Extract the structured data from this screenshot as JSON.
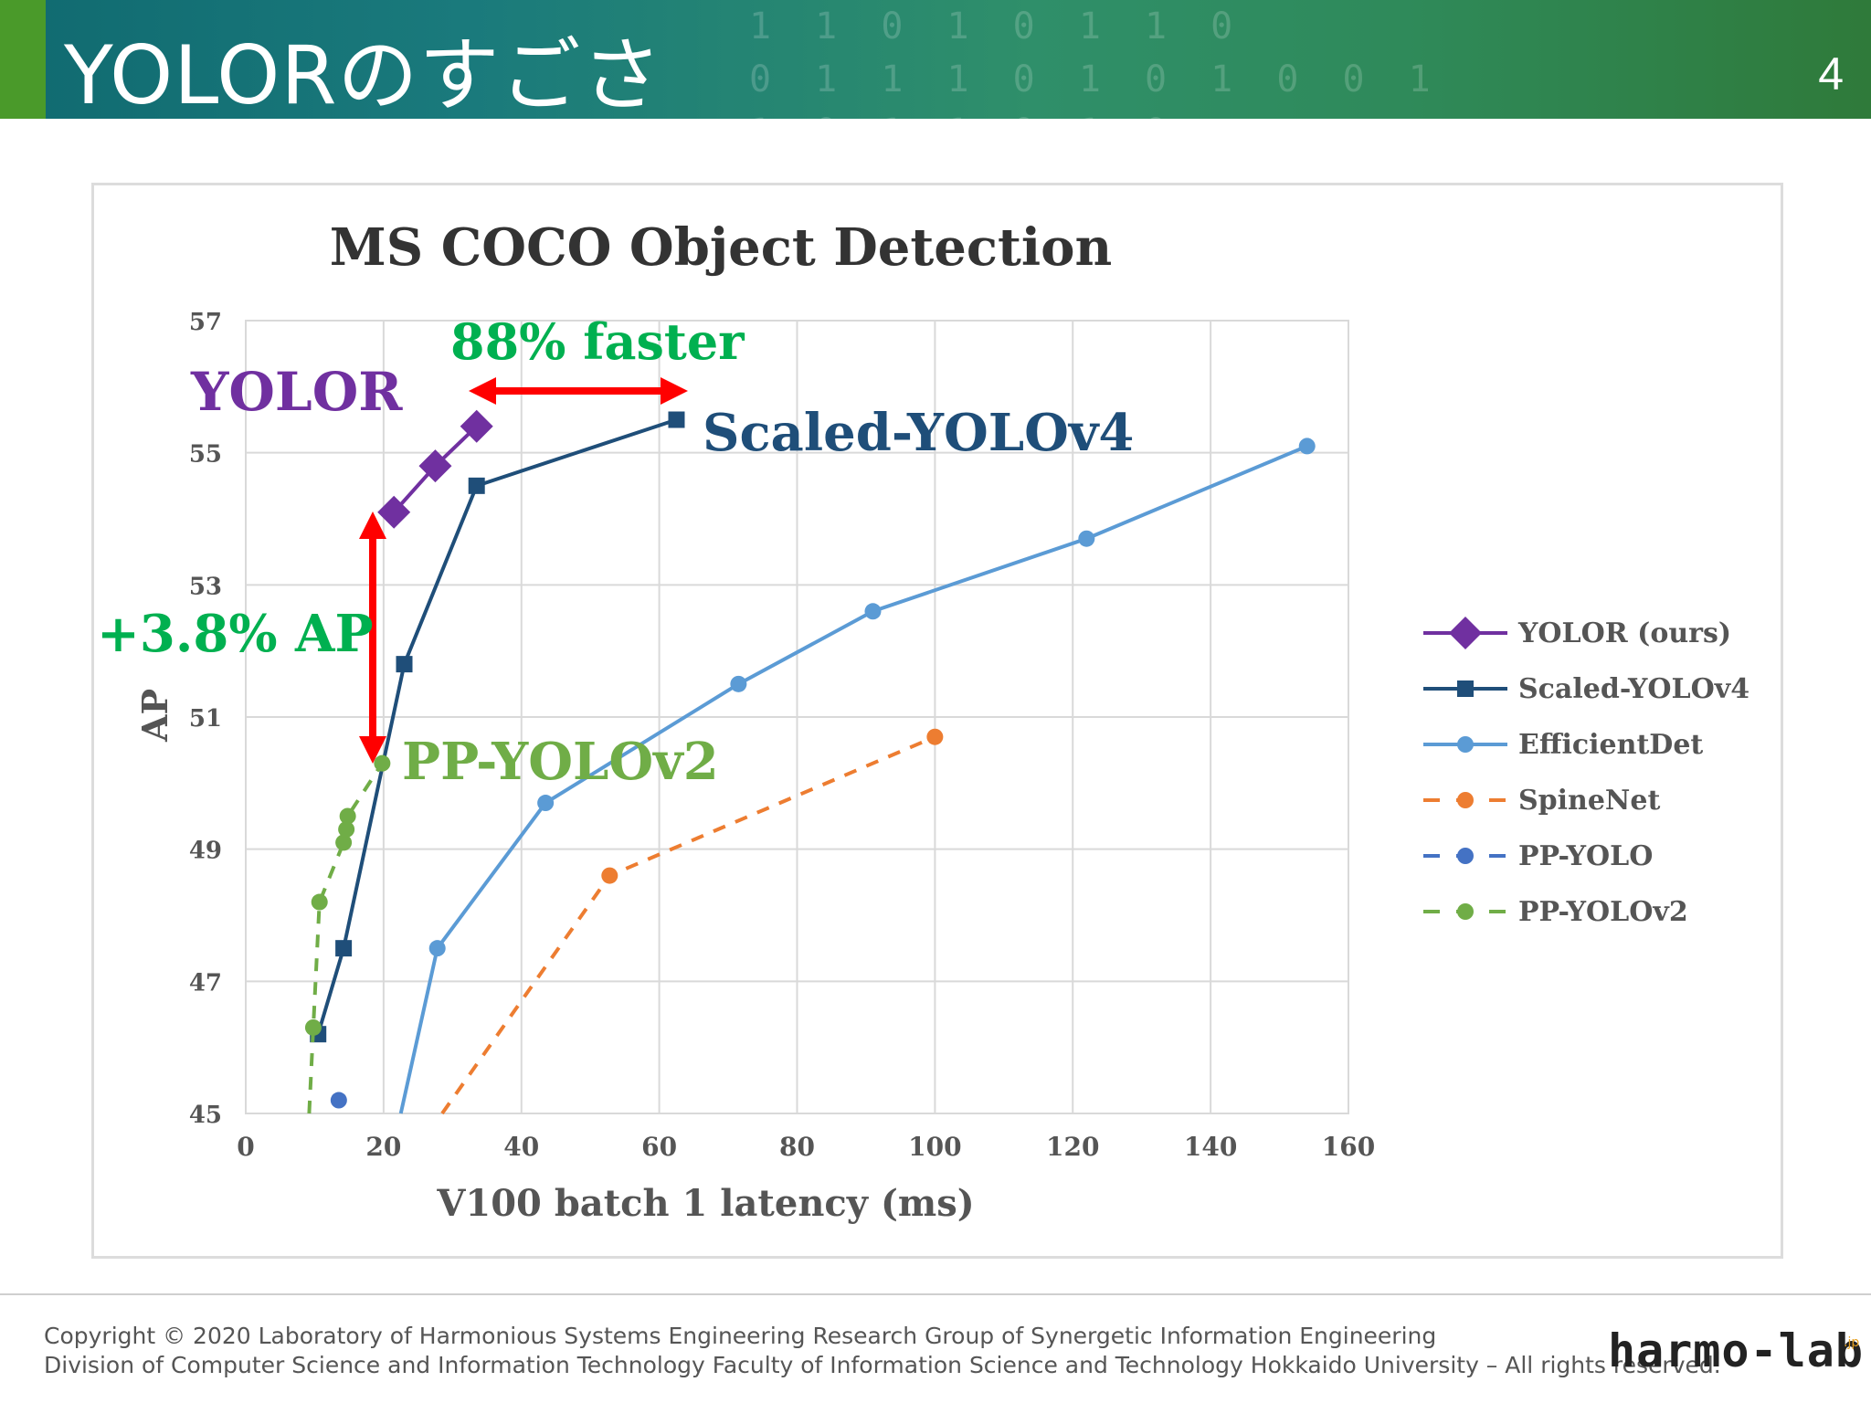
{
  "header": {
    "title": "YOLORのすごさ",
    "page_number": "4",
    "background_digits": "1 1 0 1 0 1 1 0\n0 1 1 1 0 1 0 1 0 0 1\n1 0 1 1 0 1 0"
  },
  "colors": {
    "yolor": "#7030a0",
    "scaled_yolov4": "#1f4e79",
    "efficientdet": "#5b9bd5",
    "spinenet": "#ed7d31",
    "pp_yolo": "#4472c4",
    "pp_yolov2": "#70ad47",
    "callout_green": "#00b050",
    "arrow_red": "#ff0000"
  },
  "chart_data": {
    "type": "line",
    "title": "MS COCO Object Detection",
    "xlabel": "V100 batch 1 latency (ms)",
    "ylabel": "AP",
    "xlim": [
      0,
      160
    ],
    "ylim": [
      45,
      57
    ],
    "xticks": [
      0,
      20,
      40,
      60,
      80,
      100,
      120,
      140,
      160
    ],
    "yticks": [
      45,
      47,
      49,
      51,
      53,
      55,
      57
    ],
    "grid": true,
    "legend_position": "right",
    "series": [
      {
        "name": "YOLOR (ours)",
        "key": "yolor",
        "marker": "diamond",
        "dash": "solid",
        "x": [
          21.5,
          27.5,
          33.5
        ],
        "y": [
          54.1,
          54.8,
          55.4
        ]
      },
      {
        "name": "Scaled-YOLOv4",
        "key": "scaled_yolov4",
        "marker": "square",
        "dash": "solid",
        "x": [
          10.5,
          14.2,
          23.0,
          33.5,
          62.5
        ],
        "y": [
          46.2,
          47.5,
          51.8,
          54.5,
          55.5
        ]
      },
      {
        "name": "EfficientDet",
        "key": "efficientdet",
        "marker": "circle",
        "dash": "solid",
        "x": [
          22.5,
          27.8,
          43.5,
          71.5,
          91.0,
          122.0,
          154.0
        ],
        "y": [
          45.0,
          47.5,
          49.7,
          51.5,
          52.6,
          53.7,
          55.1
        ]
      },
      {
        "name": "SpineNet",
        "key": "spinenet",
        "marker": "circle",
        "dash": "dashed",
        "x": [
          28.5,
          52.8,
          100.0
        ],
        "y": [
          45.0,
          48.6,
          50.7
        ]
      },
      {
        "name": "PP-YOLO",
        "key": "pp_yolo",
        "marker": "circle",
        "dash": "dashed",
        "x": [
          13.5
        ],
        "y": [
          45.2
        ]
      },
      {
        "name": "PP-YOLOv2",
        "key": "pp_yolov2",
        "marker": "circle",
        "dash": "dashed",
        "x": [
          9.2,
          9.8,
          10.7,
          14.2,
          14.6,
          14.8,
          19.8
        ],
        "y": [
          45.0,
          46.3,
          48.2,
          49.1,
          49.3,
          49.5,
          50.3
        ]
      }
    ],
    "annotations": {
      "yolor_label": "YOLOR",
      "scaled_label": "Scaled-YOLOv4",
      "ppyolov2_label": "PP-YOLOv2",
      "faster_label": "88% faster",
      "ap_label": "+3.8% AP"
    }
  },
  "footer": {
    "copyright_line1": "Copyright © 2020 Laboratory of Harmonious Systems Engineering Research Group of Synergetic Information Engineering",
    "copyright_line2": "Division of Computer Science and Information Technology Faculty of Information Science and Technology Hokkaido University – All rights reserved.",
    "logo_text": "harmo-lab",
    "logo_sup": ".jp"
  }
}
